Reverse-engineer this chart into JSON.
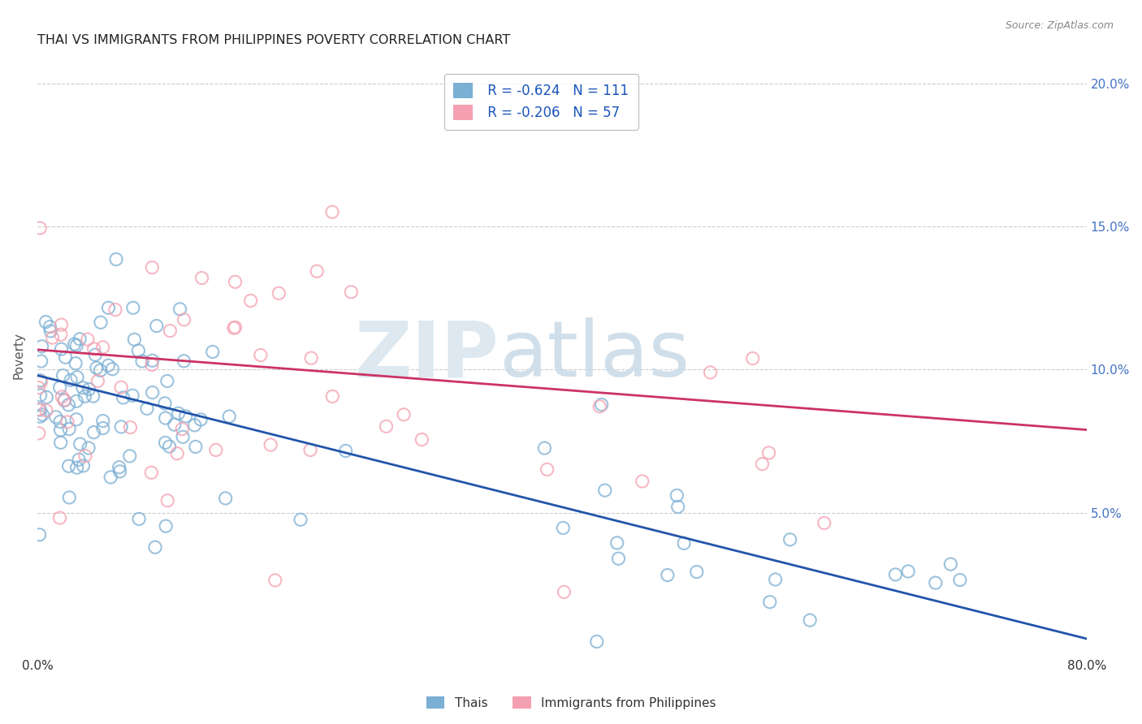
{
  "title": "THAI VS IMMIGRANTS FROM PHILIPPINES POVERTY CORRELATION CHART",
  "source": "Source: ZipAtlas.com",
  "xlabel": "",
  "ylabel": "Poverty",
  "xlim": [
    0.0,
    0.8
  ],
  "ylim": [
    0.0,
    0.21
  ],
  "xticks": [
    0.0,
    0.1,
    0.2,
    0.3,
    0.4,
    0.5,
    0.6,
    0.7,
    0.8
  ],
  "xticklabels": [
    "0.0%",
    "",
    "",
    "",
    "",
    "",
    "",
    "",
    "80.0%"
  ],
  "ytick_positions": [
    0.05,
    0.1,
    0.15,
    0.2
  ],
  "ytick_labels": [
    "5.0%",
    "10.0%",
    "15.0%",
    "20.0%"
  ],
  "background_color": "#ffffff",
  "legend": {
    "thai_r": "R = -0.624",
    "thai_n": "N = 111",
    "phil_r": "R = -0.206",
    "phil_n": "N = 57"
  },
  "thai_color": "#7bafd4",
  "phil_color": "#f4a0b0",
  "thai_line_color": "#2255aa",
  "phil_line_color": "#cc3366",
  "thai_regression": {
    "intercept": 0.098,
    "slope": -0.115
  },
  "phil_regression": {
    "intercept": 0.107,
    "slope": -0.035
  }
}
